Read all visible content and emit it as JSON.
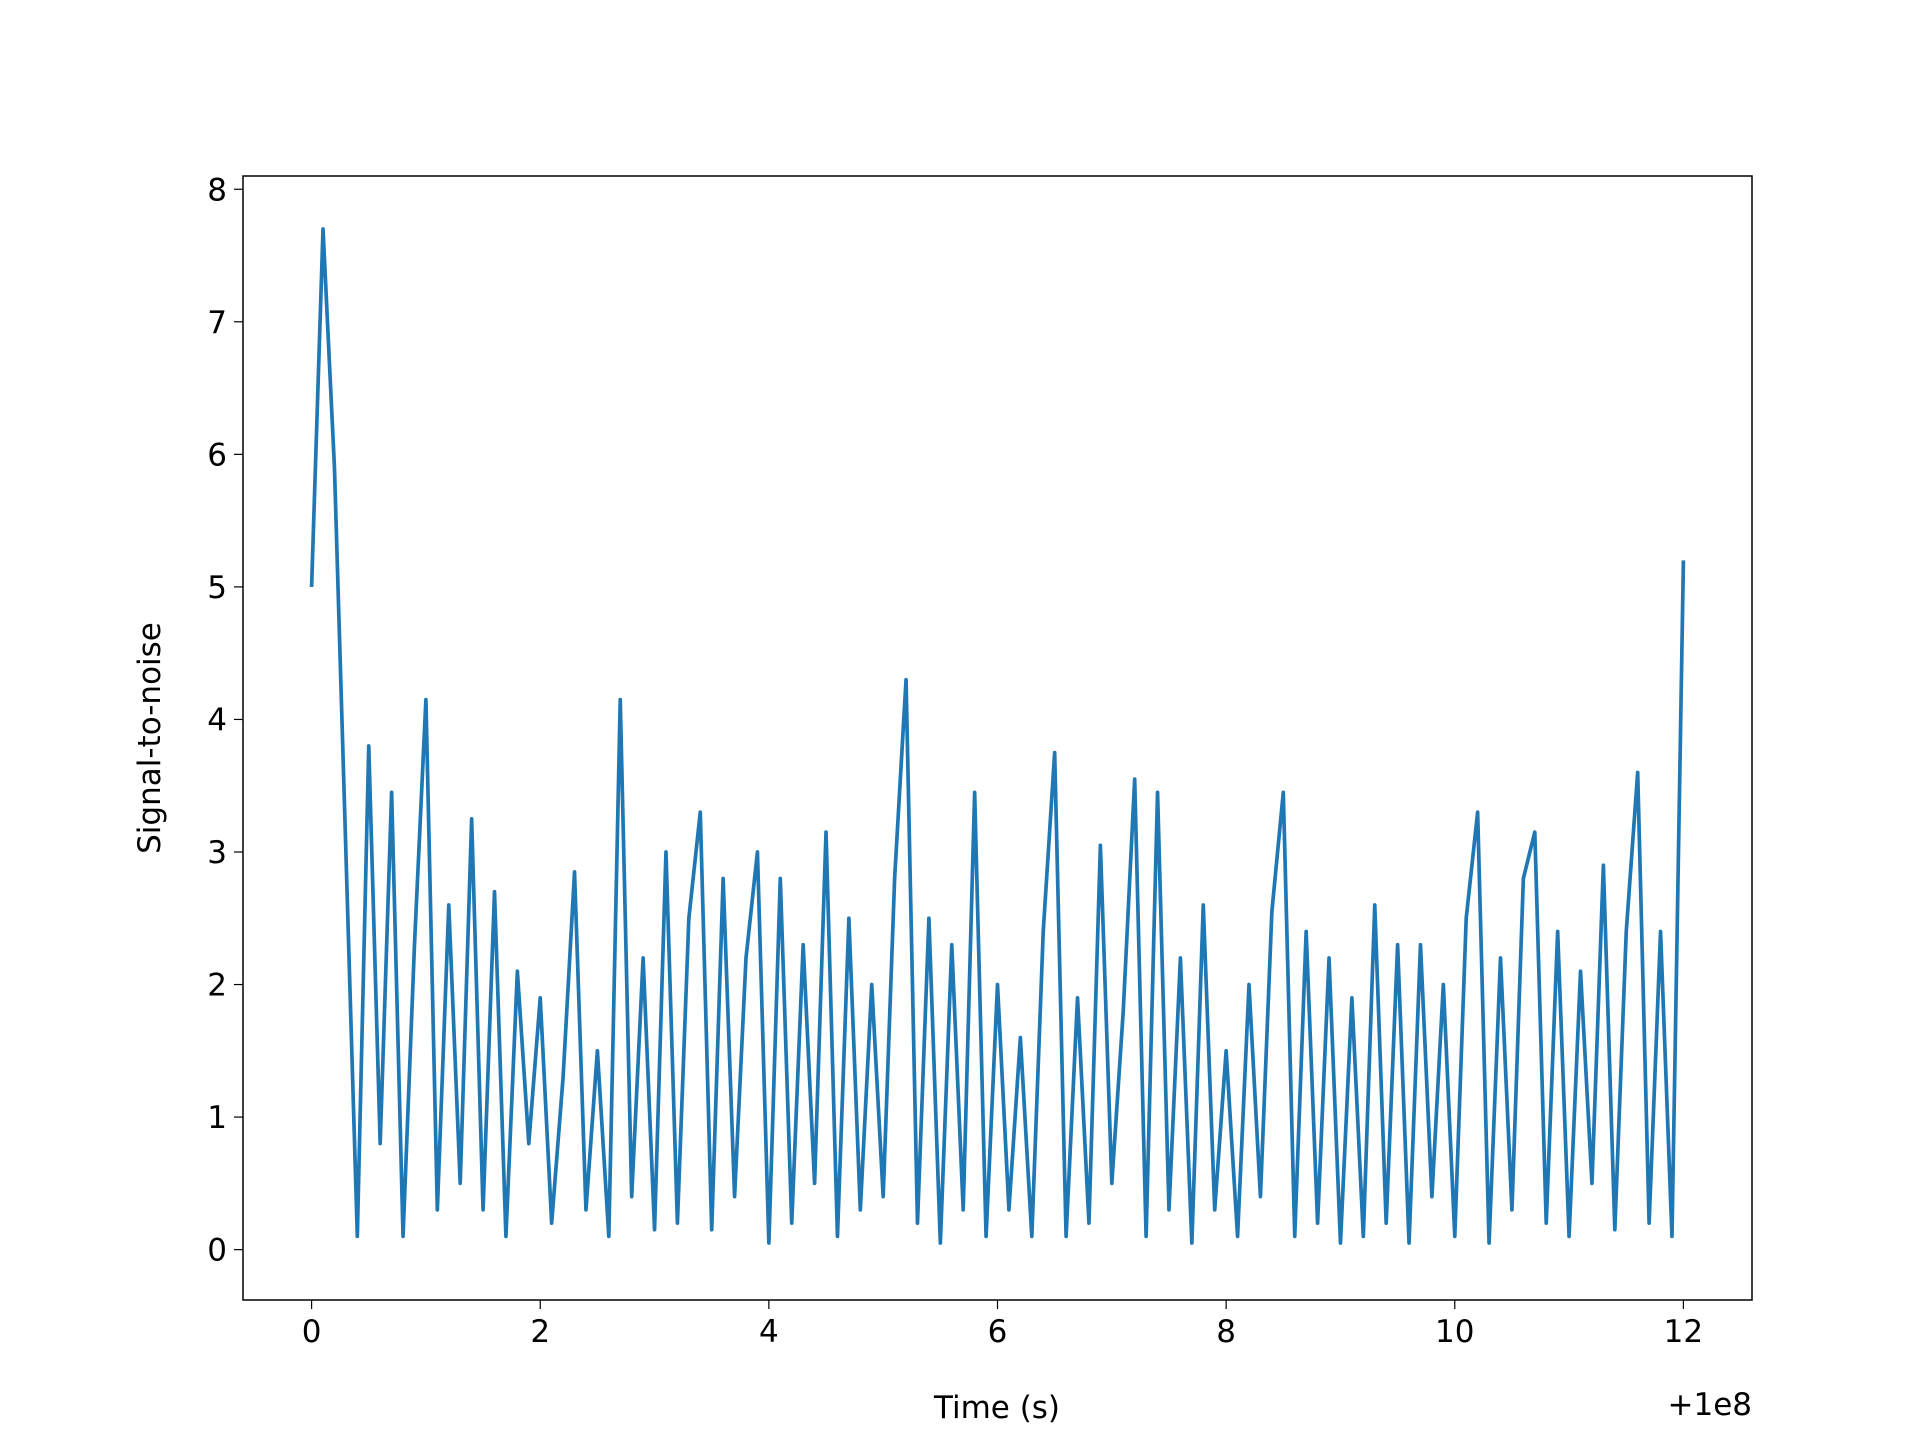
{
  "chart_data": {
    "type": "line",
    "xlabel": "Time (s)",
    "ylabel": "Signal-to-noise",
    "x_offset_label": "+1e8",
    "x": [
      0,
      0.1,
      0.2,
      0.3,
      0.4,
      0.5,
      0.6,
      0.7,
      0.8,
      0.9,
      1,
      1.1,
      1.2,
      1.3,
      1.4,
      1.5,
      1.6,
      1.7,
      1.8,
      1.9,
      2,
      2.1,
      2.2,
      2.3,
      2.4,
      2.5,
      2.6,
      2.7,
      2.8,
      2.9,
      3,
      3.1,
      3.2,
      3.3,
      3.4,
      3.5,
      3.6,
      3.7,
      3.8,
      3.9,
      4,
      4.1,
      4.2,
      4.3,
      4.4,
      4.5,
      4.6,
      4.7,
      4.8,
      4.9,
      5,
      5.1,
      5.2,
      5.3,
      5.4,
      5.5,
      5.6,
      5.7,
      5.8,
      5.9,
      6,
      6.1,
      6.2,
      6.3,
      6.4,
      6.5,
      6.6,
      6.7,
      6.8,
      6.9,
      7,
      7.1,
      7.2,
      7.3,
      7.4,
      7.5,
      7.6,
      7.7,
      7.8,
      7.9,
      8,
      8.1,
      8.2,
      8.3,
      8.4,
      8.5,
      8.6,
      8.7,
      8.8,
      8.9,
      9,
      9.1,
      9.2,
      9.3,
      9.4,
      9.5,
      9.6,
      9.7,
      9.8,
      9.9,
      10,
      10.1,
      10.2,
      10.3,
      10.4,
      10.5,
      10.6,
      10.7,
      10.8,
      10.9,
      11,
      11.1,
      11.2,
      11.3,
      11.4,
      11.5,
      11.6,
      11.7,
      11.8,
      11.9,
      12
    ],
    "series": [
      {
        "color": "#1f77b4",
        "values": [
          5.0,
          7.7,
          5.9,
          3.0,
          0.1,
          3.8,
          0.8,
          3.45,
          0.1,
          2.3,
          4.15,
          0.3,
          2.6,
          0.5,
          3.25,
          0.3,
          2.7,
          0.1,
          2.1,
          0.8,
          1.9,
          0.2,
          1.3,
          2.85,
          0.3,
          1.5,
          0.1,
          4.15,
          0.4,
          2.2,
          0.15,
          3.0,
          0.2,
          2.5,
          3.3,
          0.15,
          2.8,
          0.4,
          2.2,
          3.0,
          0.05,
          2.8,
          0.2,
          2.3,
          0.5,
          3.15,
          0.1,
          2.5,
          0.3,
          2.0,
          0.4,
          2.8,
          4.3,
          0.2,
          2.5,
          0.05,
          2.3,
          0.3,
          3.45,
          0.1,
          2.0,
          0.3,
          1.6,
          0.1,
          2.4,
          3.75,
          0.1,
          1.9,
          0.2,
          3.05,
          0.5,
          1.8,
          3.55,
          0.1,
          3.45,
          0.3,
          2.2,
          0.05,
          2.6,
          0.3,
          1.5,
          0.1,
          2.0,
          0.4,
          2.55,
          3.45,
          0.1,
          2.4,
          0.2,
          2.2,
          0.05,
          1.9,
          0.1,
          2.6,
          0.2,
          2.3,
          0.05,
          2.3,
          0.4,
          2.0,
          0.1,
          2.5,
          3.3,
          0.05,
          2.2,
          0.3,
          2.8,
          3.15,
          0.2,
          2.4,
          0.1,
          2.1,
          0.5,
          2.9,
          0.15,
          2.4,
          3.6,
          0.2,
          2.4,
          0.1,
          5.2
        ]
      }
    ],
    "xlim": [
      -0.6,
      12.6
    ],
    "ylim": [
      -0.38,
      8.1
    ],
    "xticks": [
      0,
      2,
      4,
      6,
      8,
      10,
      12
    ],
    "yticks": [
      0,
      1,
      2,
      3,
      4,
      5,
      6,
      7,
      8
    ]
  }
}
